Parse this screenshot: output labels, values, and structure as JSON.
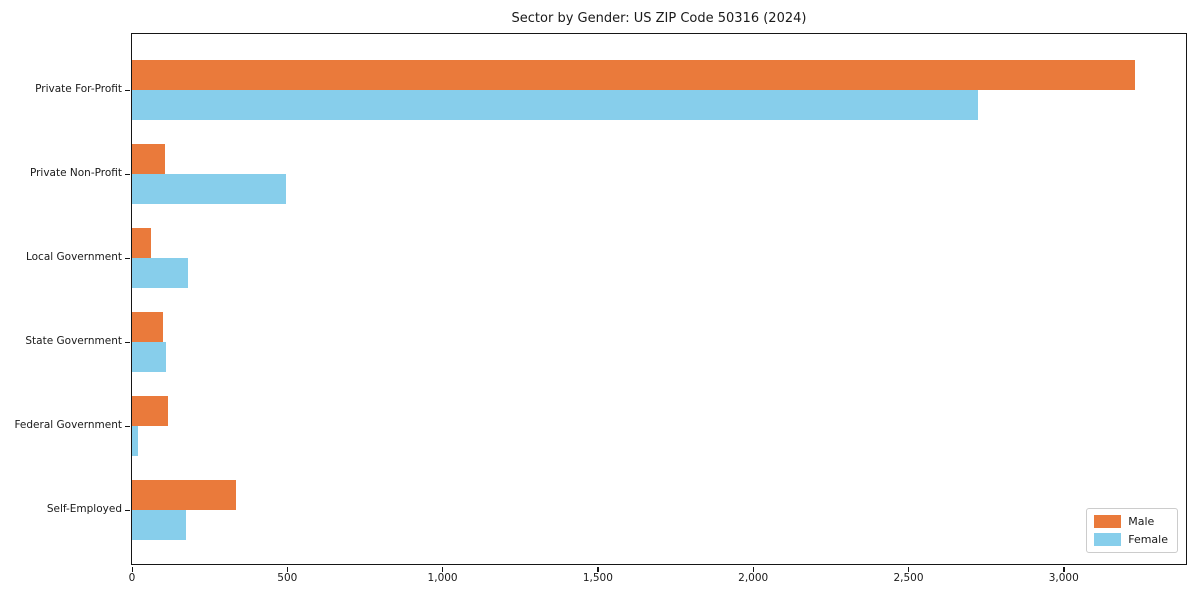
{
  "chart_data": {
    "type": "bar",
    "orientation": "horizontal",
    "title": "Sector by Gender: US ZIP Code 50316 (2024)",
    "xlabel": "",
    "ylabel": "",
    "grid": false,
    "xlim": [
      0,
      3400
    ],
    "categories": [
      "Private For-Profit",
      "Private Non-Profit",
      "Local Government",
      "State Government",
      "Federal Government",
      "Self-Employed"
    ],
    "series": [
      {
        "name": "Male",
        "color": "#EA7A3B",
        "values": [
          3230,
          105,
          60,
          100,
          115,
          335
        ]
      },
      {
        "name": "Female",
        "color": "#87CEEB",
        "values": [
          2725,
          495,
          180,
          110,
          20,
          175
        ]
      }
    ],
    "xticks": [
      {
        "value": 0,
        "label": "0"
      },
      {
        "value": 500,
        "label": "500"
      },
      {
        "value": 1000,
        "label": "1,000"
      },
      {
        "value": 1500,
        "label": "1,500"
      },
      {
        "value": 2000,
        "label": "2,000"
      },
      {
        "value": 2500,
        "label": "2,500"
      },
      {
        "value": 3000,
        "label": "3,000"
      }
    ],
    "legend": {
      "position": "lower right",
      "entries": [
        "Male",
        "Female"
      ]
    }
  },
  "colors": {
    "male": "#EA7A3B",
    "female": "#87CEEB",
    "axis": "#161616",
    "text": "#1a1a1a",
    "legend_border": "#cccccc",
    "background": "#ffffff"
  }
}
